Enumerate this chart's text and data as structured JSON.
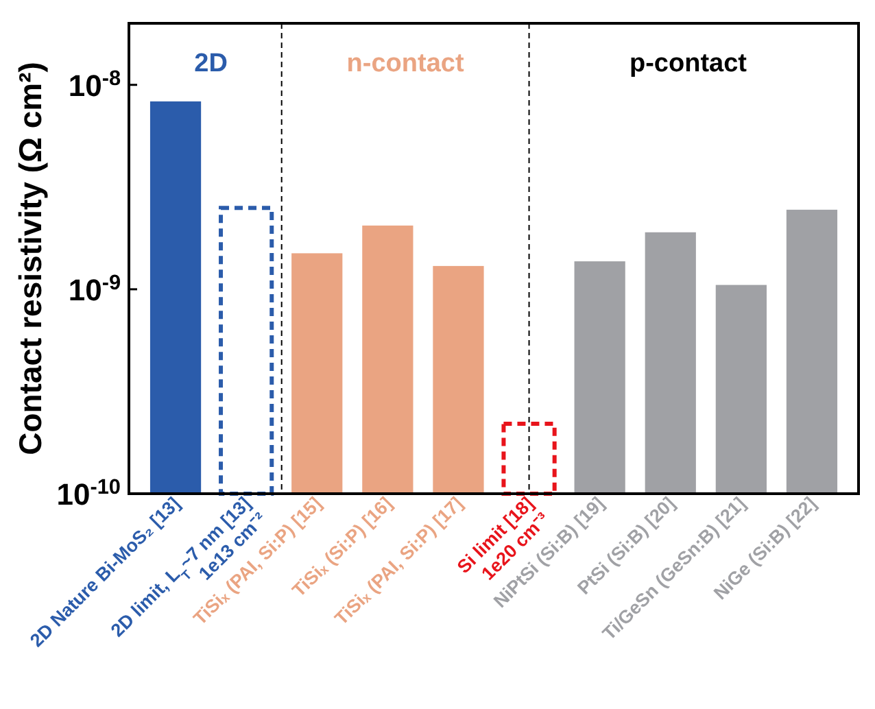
{
  "chart_data": {
    "type": "bar",
    "log": true,
    "ylabel": "Contact resistivity (Ω cm²)",
    "categories": [
      "2D Nature Bi-MoS₂ [13]",
      "2D limit, L$_{T}$~7 nm [13]\n1e13 cm⁻²",
      "TiSiₓ (PAI, Si:P) [15]",
      "TiSiₓ (Si:P) [16]",
      "TiSiₓ (PAI, Si:P) [17]",
      "Si limit [18]\n1e20 cm⁻³",
      "NiPtSi (Si:B) [19]",
      "PtSi (Si:B) [20]",
      "Ti/GeSn (GeSn:B) [21]",
      "NiGe (Si:B) [22]"
    ],
    "series": [
      {
        "colors": [
          "#2b5cab",
          null,
          "#eaa482",
          "#eaa482",
          "#eaa482",
          null,
          "#a0a1a5",
          "#a0a1a5",
          "#a0a1a5",
          "#a0a1a5"
        ],
        "values": [
          8.3e-09,
          null,
          1.5e-09,
          2.05e-09,
          1.3e-09,
          null,
          1.37e-09,
          1.9e-09,
          1.05e-09,
          2.45e-09
        ]
      },
      {
        "line_style": "dashed",
        "colors": [
          null,
          "#2b5cab",
          null,
          null,
          null,
          "#e8141b",
          null,
          null,
          null,
          null
        ],
        "values": [
          null,
          2.5e-09,
          null,
          null,
          null,
          2.2e-10,
          null,
          null,
          null,
          null
        ]
      }
    ],
    "ylim": [
      1e-10,
      2e-08
    ],
    "yticks": [
      {
        "value": 1e-10,
        "label": "10$^{-10}$"
      },
      {
        "value": 1e-09,
        "label": "10$^{-9}$"
      },
      {
        "value": 1e-08,
        "label": "10$^{-8}$"
      }
    ],
    "annotations": [
      "2D",
      "n-contact",
      "p-contact"
    ]
  }
}
